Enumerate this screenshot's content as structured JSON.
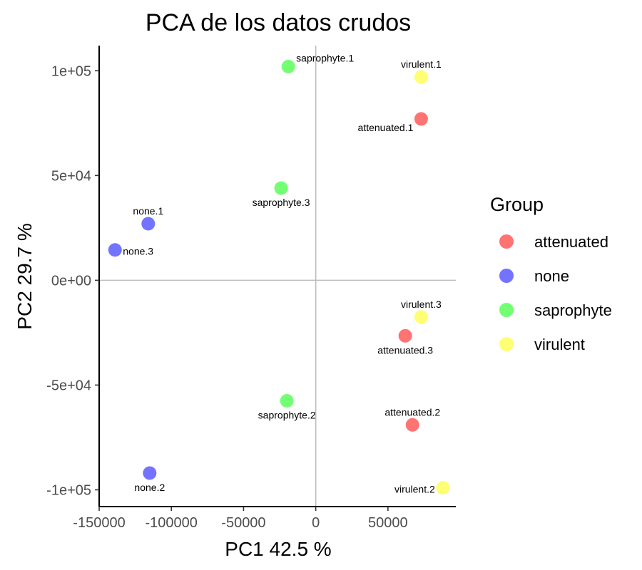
{
  "chart_data": {
    "type": "scatter",
    "title": "PCA de los datos crudos",
    "xlabel": "PC1 42.5 %",
    "ylabel": "PC2 29.7 %",
    "xlim": [
      -150000,
      97000
    ],
    "ylim": [
      -108000,
      112000
    ],
    "x_ticks": [
      -150000,
      -100000,
      -50000,
      0,
      50000
    ],
    "x_tick_labels": [
      "-150000",
      "-100000",
      "-50000",
      "0",
      "50000"
    ],
    "y_ticks": [
      100000,
      50000,
      0,
      -50000,
      -100000
    ],
    "y_tick_labels": [
      "1e+05",
      "5e+04",
      "0e+00",
      "-5e+04",
      "-1e+05"
    ],
    "reference_lines": {
      "x": 0,
      "y": 0
    },
    "legend": {
      "title": "Group",
      "position": "right",
      "entries": [
        {
          "name": "attenuated",
          "color": "#FF6B6B"
        },
        {
          "name": "none",
          "color": "#6B6BFF"
        },
        {
          "name": "saprophyte",
          "color": "#6BFF6B"
        },
        {
          "name": "virulent",
          "color": "#FFFF6B"
        }
      ]
    },
    "points": [
      {
        "label": "saprophyte.1",
        "group": "saprophyte",
        "x": -19000,
        "y": 102000,
        "anchor": "ur"
      },
      {
        "label": "virulent.1",
        "group": "virulent",
        "x": 73000,
        "y": 97000,
        "anchor": "up"
      },
      {
        "label": "attenuated.1",
        "group": "attenuated",
        "x": 73000,
        "y": 77000,
        "anchor": "ll"
      },
      {
        "label": "saprophyte.3",
        "group": "saprophyte",
        "x": -24000,
        "y": 44000,
        "anchor": "down"
      },
      {
        "label": "none.1",
        "group": "none",
        "x": -116000,
        "y": 27000,
        "anchor": "up"
      },
      {
        "label": "none.3",
        "group": "none",
        "x": -139000,
        "y": 14500,
        "anchor": "right"
      },
      {
        "label": "virulent.3",
        "group": "virulent",
        "x": 73000,
        "y": -17500,
        "anchor": "up"
      },
      {
        "label": "attenuated.3",
        "group": "attenuated",
        "x": 62000,
        "y": -26500,
        "anchor": "down"
      },
      {
        "label": "saprophyte.2",
        "group": "saprophyte",
        "x": -20000,
        "y": -57500,
        "anchor": "down"
      },
      {
        "label": "attenuated.2",
        "group": "attenuated",
        "x": 67000,
        "y": -69000,
        "anchor": "up"
      },
      {
        "label": "none.2",
        "group": "none",
        "x": -115000,
        "y": -92000,
        "anchor": "down"
      },
      {
        "label": "virulent.2",
        "group": "virulent",
        "x": 88000,
        "y": -99000,
        "anchor": "left"
      }
    ]
  }
}
